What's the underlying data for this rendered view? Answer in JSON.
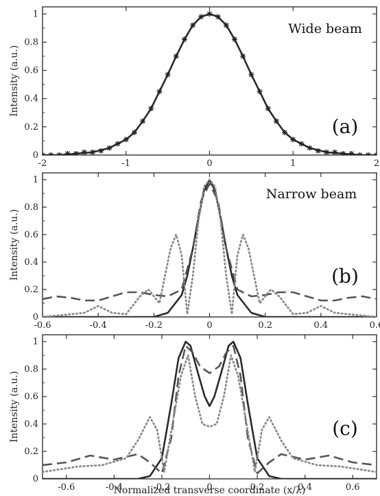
{
  "chart_data": [
    {
      "type": "line",
      "panel_label": "(a)",
      "annotation": "Wide beam",
      "ylabel": "Intensity (a.u.)",
      "xlabel": "",
      "xlim": [
        -2,
        2
      ],
      "ylim": [
        0,
        1.05
      ],
      "xticks": [
        "-2",
        "-1",
        "0",
        "1",
        "2"
      ],
      "yticks": [
        "0",
        "0.2",
        "0.4",
        "0.6",
        "0.8",
        "1"
      ],
      "series": [
        {
          "style": "solid",
          "x": [
            -2.0,
            -1.8,
            -1.6,
            -1.4,
            -1.2,
            -1.0,
            -0.9,
            -0.8,
            -0.7,
            -0.6,
            -0.5,
            -0.4,
            -0.3,
            -0.2,
            -0.1,
            0.0,
            0.1,
            0.2,
            0.3,
            0.4,
            0.5,
            0.6,
            0.7,
            0.8,
            0.9,
            1.0,
            1.2,
            1.4,
            1.6,
            1.8,
            2.0
          ],
          "y": [
            0.0,
            0.0,
            0.01,
            0.02,
            0.05,
            0.11,
            0.16,
            0.24,
            0.33,
            0.45,
            0.57,
            0.7,
            0.82,
            0.92,
            0.98,
            1.0,
            0.98,
            0.92,
            0.82,
            0.7,
            0.57,
            0.45,
            0.33,
            0.24,
            0.16,
            0.11,
            0.05,
            0.02,
            0.01,
            0.0,
            0.0
          ]
        },
        {
          "style": "asterisk-markers",
          "x": [
            -2.0,
            -1.9,
            -1.8,
            -1.7,
            -1.6,
            -1.5,
            -1.4,
            -1.3,
            -1.2,
            -1.1,
            -1.0,
            -0.9,
            -0.8,
            -0.7,
            -0.6,
            -0.5,
            -0.4,
            -0.3,
            -0.2,
            -0.1,
            0.0,
            0.1,
            0.2,
            0.3,
            0.4,
            0.5,
            0.6,
            0.7,
            0.8,
            0.9,
            1.0,
            1.1,
            1.2,
            1.3,
            1.4,
            1.5,
            1.6,
            1.7,
            1.8,
            1.9,
            2.0
          ],
          "y": [
            0.0,
            0.0,
            0.0,
            0.01,
            0.01,
            0.02,
            0.02,
            0.03,
            0.05,
            0.08,
            0.11,
            0.16,
            0.24,
            0.33,
            0.45,
            0.57,
            0.7,
            0.82,
            0.92,
            0.98,
            1.0,
            0.98,
            0.92,
            0.82,
            0.7,
            0.57,
            0.45,
            0.33,
            0.24,
            0.16,
            0.11,
            0.08,
            0.05,
            0.03,
            0.02,
            0.02,
            0.01,
            0.01,
            0.0,
            0.0,
            0.0
          ]
        }
      ]
    },
    {
      "type": "line",
      "panel_label": "(b)",
      "annotation": "Narrow beam",
      "ylabel": "Intensity (a.u.)",
      "xlabel": "",
      "xlim": [
        -0.6,
        0.6
      ],
      "ylim": [
        0,
        1.05
      ],
      "xticks": [
        "-0.6",
        "-0.4",
        "-0.2",
        "0",
        "0.2",
        "0.4",
        "0.6"
      ],
      "yticks": [
        "0",
        "0.2",
        "0.4",
        "0.6",
        "0.8",
        "1"
      ],
      "series": [
        {
          "style": "solid",
          "x": [
            -0.6,
            -0.3,
            -0.2,
            -0.15,
            -0.1,
            -0.08,
            -0.06,
            -0.04,
            -0.02,
            0.0,
            0.02,
            0.04,
            0.06,
            0.08,
            0.1,
            0.15,
            0.2,
            0.3,
            0.6
          ],
          "y": [
            0.0,
            0.0,
            0.0,
            0.03,
            0.16,
            0.3,
            0.5,
            0.72,
            0.92,
            1.0,
            0.92,
            0.72,
            0.5,
            0.3,
            0.16,
            0.03,
            0.0,
            0.0,
            0.0
          ]
        },
        {
          "style": "dashed",
          "x": [
            -0.6,
            -0.55,
            -0.5,
            -0.45,
            -0.4,
            -0.35,
            -0.3,
            -0.25,
            -0.2,
            -0.15,
            -0.1,
            -0.06,
            -0.03,
            0.0,
            0.03,
            0.06,
            0.1,
            0.15,
            0.2,
            0.25,
            0.3,
            0.35,
            0.4,
            0.45,
            0.5,
            0.55,
            0.6
          ],
          "y": [
            0.13,
            0.15,
            0.14,
            0.12,
            0.12,
            0.15,
            0.18,
            0.18,
            0.16,
            0.15,
            0.2,
            0.5,
            0.85,
            0.97,
            0.85,
            0.5,
            0.2,
            0.15,
            0.16,
            0.18,
            0.18,
            0.15,
            0.12,
            0.12,
            0.14,
            0.15,
            0.13
          ]
        },
        {
          "style": "dotted",
          "x": [
            -0.6,
            -0.5,
            -0.45,
            -0.4,
            -0.35,
            -0.3,
            -0.25,
            -0.22,
            -0.18,
            -0.14,
            -0.12,
            -0.1,
            -0.08,
            -0.06,
            -0.04,
            -0.02,
            0.0,
            0.02,
            0.04,
            0.06,
            0.08,
            0.1,
            0.12,
            0.14,
            0.18,
            0.22,
            0.25,
            0.3,
            0.35,
            0.4,
            0.45,
            0.5,
            0.6
          ],
          "y": [
            0.0,
            0.02,
            0.03,
            0.08,
            0.03,
            0.02,
            0.15,
            0.2,
            0.1,
            0.5,
            0.6,
            0.45,
            0.02,
            0.3,
            0.7,
            0.95,
            1.0,
            0.95,
            0.7,
            0.3,
            0.02,
            0.45,
            0.6,
            0.5,
            0.1,
            0.2,
            0.15,
            0.02,
            0.03,
            0.08,
            0.03,
            0.02,
            0.0
          ]
        }
      ]
    },
    {
      "type": "line",
      "panel_label": "(c)",
      "annotation": "",
      "ylabel": "Intensity (a.u.)",
      "xlabel": "Normalized transverse coordinate (x/λ)",
      "xlim": [
        -0.7,
        0.7
      ],
      "ylim": [
        0,
        1.05
      ],
      "xticks": [
        "-0.6",
        "-0.4",
        "-0.2",
        "0",
        "0.2",
        "0.4",
        "0.6"
      ],
      "yticks": [
        "0",
        "0.2",
        "0.4",
        "0.6",
        "0.8",
        "1"
      ],
      "series": [
        {
          "style": "solid",
          "x": [
            -0.7,
            -0.3,
            -0.25,
            -0.2,
            -0.16,
            -0.13,
            -0.1,
            -0.08,
            -0.05,
            -0.02,
            0.0,
            0.02,
            0.05,
            0.08,
            0.1,
            0.13,
            0.16,
            0.2,
            0.25,
            0.3,
            0.7
          ],
          "y": [
            0.0,
            0.0,
            0.02,
            0.15,
            0.55,
            0.88,
            1.0,
            0.97,
            0.78,
            0.6,
            0.53,
            0.6,
            0.78,
            0.97,
            1.0,
            0.88,
            0.55,
            0.15,
            0.02,
            0.0,
            0.0
          ]
        },
        {
          "style": "dashed",
          "x": [
            -0.7,
            -0.6,
            -0.5,
            -0.4,
            -0.3,
            -0.25,
            -0.2,
            -0.16,
            -0.13,
            -0.1,
            -0.07,
            -0.04,
            0.0,
            0.04,
            0.07,
            0.1,
            0.13,
            0.16,
            0.2,
            0.25,
            0.3,
            0.4,
            0.5,
            0.6,
            0.7
          ],
          "y": [
            0.1,
            0.12,
            0.17,
            0.14,
            0.18,
            0.12,
            0.04,
            0.3,
            0.75,
            0.97,
            0.92,
            0.82,
            0.77,
            0.82,
            0.92,
            0.97,
            0.75,
            0.3,
            0.04,
            0.12,
            0.18,
            0.14,
            0.17,
            0.12,
            0.1
          ]
        },
        {
          "style": "dotted",
          "x": [
            -0.7,
            -0.55,
            -0.45,
            -0.35,
            -0.3,
            -0.25,
            -0.22,
            -0.19,
            -0.16,
            -0.12,
            -0.09,
            -0.06,
            -0.03,
            0.0,
            0.03,
            0.06,
            0.09,
            0.12,
            0.16,
            0.19,
            0.22,
            0.25,
            0.3,
            0.35,
            0.45,
            0.55,
            0.7
          ],
          "y": [
            0.05,
            0.09,
            0.1,
            0.15,
            0.28,
            0.45,
            0.36,
            0.05,
            0.35,
            0.75,
            0.9,
            0.6,
            0.4,
            0.38,
            0.4,
            0.6,
            0.9,
            0.75,
            0.35,
            0.05,
            0.36,
            0.45,
            0.28,
            0.15,
            0.1,
            0.09,
            0.05
          ]
        }
      ]
    }
  ]
}
